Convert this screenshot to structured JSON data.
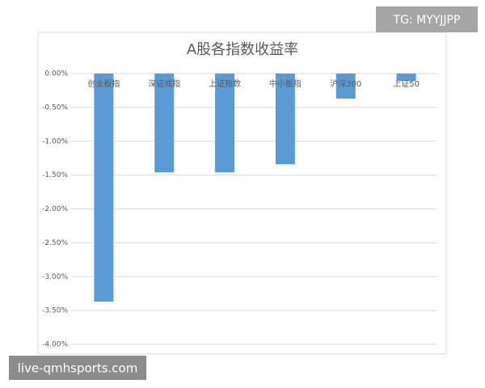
{
  "chart_data": {
    "type": "bar",
    "title": "A股各指数收益率",
    "categories": [
      "创业板指",
      "深证成指",
      "上证指数",
      "中小板指",
      "沪深300",
      "上证50"
    ],
    "values": [
      -3.37,
      -1.46,
      -1.46,
      -1.34,
      -0.37,
      -0.11
    ],
    "color": "#5b9bd5",
    "ylim": [
      -4,
      0
    ],
    "yticks": [
      {
        "value": 0,
        "label": "0.00%"
      },
      {
        "value": -0.5,
        "label": "-0.50%"
      },
      {
        "value": -1,
        "label": "-1.00%"
      },
      {
        "value": -1.5,
        "label": "-1.50%"
      },
      {
        "value": -2,
        "label": "-2.00%"
      },
      {
        "value": -2.5,
        "label": "-2.50%"
      },
      {
        "value": -3,
        "label": "-3.00%"
      },
      {
        "value": -3.5,
        "label": "-3.50%"
      },
      {
        "value": -4,
        "label": "-4.00%"
      }
    ],
    "grid": true,
    "annotations": [
      "TG: MYYJJPP",
      "live-qmhsports.com"
    ]
  }
}
